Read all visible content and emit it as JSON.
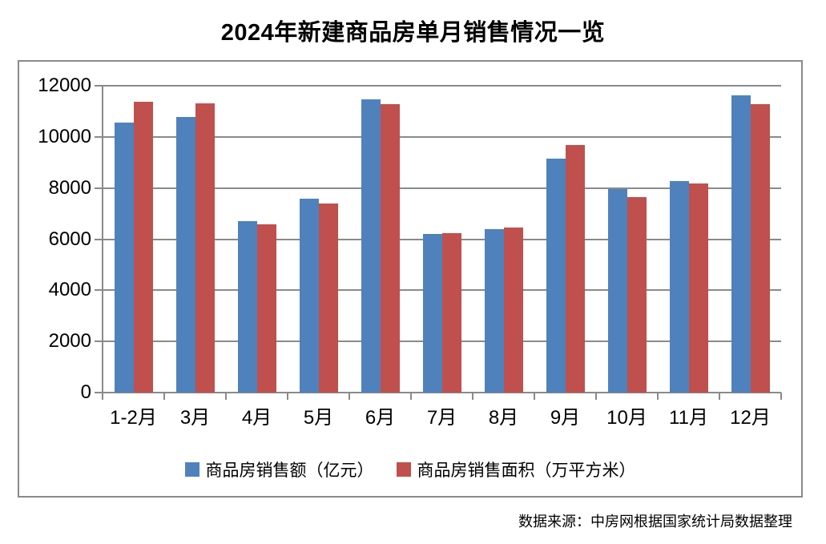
{
  "page": {
    "title": "2024年新建商品房单月销售情况一览",
    "source_note": "数据来源：中房网根据国家统计局数据整理"
  },
  "colors": {
    "series_sales_amount": "#4F81BD",
    "series_sales_area": "#C0504D",
    "gridline": "#8A8A8A",
    "axis": "#8A8A8A",
    "frame_border": "#8A8A8A",
    "text": "#000000",
    "background": "#FFFFFF"
  },
  "chart_data": {
    "type": "bar",
    "title": "2024年新建商品房单月销售情况一览",
    "categories": [
      "1-2月",
      "3月",
      "4月",
      "5月",
      "6月",
      "7月",
      "8月",
      "9月",
      "10月",
      "11月",
      "12月"
    ],
    "series": [
      {
        "name": "商品房销售额（亿元）",
        "color": "#4F81BD",
        "values": [
          10566,
          10789,
          6712,
          7598,
          11468,
          6197,
          6393,
          9157,
          7975,
          8270,
          11625
        ]
      },
      {
        "name": "商品房销售面积（万平方米）",
        "color": "#C0504D",
        "values": [
          11369,
          11299,
          6584,
          7390,
          11274,
          6233,
          6453,
          9682,
          7646,
          8188,
          11267
        ]
      }
    ],
    "xlabel": "",
    "ylabel": "",
    "ylim": [
      0,
      12000
    ],
    "ytick_step": 2000,
    "yticks": [
      0,
      2000,
      4000,
      6000,
      8000,
      10000,
      12000
    ],
    "grid": true,
    "legend_position": "bottom",
    "source_note": "数据来源：中房网根据国家统计局数据整理"
  }
}
